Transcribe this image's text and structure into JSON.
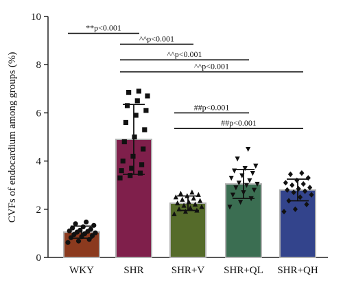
{
  "chart_data": {
    "type": "bar",
    "title": "",
    "xlabel": "",
    "ylabel": "CVFs of endocardium among groups (%)",
    "ylim": [
      0,
      10
    ],
    "yticks": [
      "0",
      "2",
      "4",
      "6",
      "8",
      "10"
    ],
    "grid": false,
    "categories": [
      "WKY",
      "SHR",
      "SHR+V",
      "SHR+QL",
      "SHR+QH"
    ],
    "values": [
      1.05,
      4.9,
      2.25,
      3.05,
      2.8
    ],
    "sd": [
      0.25,
      1.45,
      0.3,
      0.6,
      0.45
    ],
    "colors": [
      "#8b3a1e",
      "#7f1f4b",
      "#556b2a",
      "#3b6e52",
      "#33448c"
    ],
    "bar_edge_color": "#b3b3b3",
    "markers": [
      "circle",
      "square",
      "triangle-up",
      "triangle-down",
      "diamond"
    ],
    "points": [
      [
        0.62,
        0.68,
        0.75,
        0.82,
        0.86,
        0.9,
        0.95,
        0.98,
        1.02,
        1.05,
        1.08,
        1.1,
        1.13,
        1.17,
        1.22,
        1.27,
        1.33,
        1.4,
        1.47
      ],
      [
        3.3,
        3.4,
        3.5,
        3.6,
        3.7,
        3.85,
        4.0,
        4.2,
        4.5,
        4.8,
        5.0,
        5.3,
        5.6,
        5.9,
        6.1,
        6.3,
        6.5,
        6.7,
        6.85,
        6.9
      ],
      [
        1.8,
        1.9,
        1.95,
        2.0,
        2.05,
        2.1,
        2.15,
        2.2,
        2.25,
        2.3,
        2.35,
        2.4,
        2.45,
        2.5,
        2.55,
        2.6,
        2.65,
        2.7
      ],
      [
        2.1,
        2.3,
        2.45,
        2.6,
        2.7,
        2.8,
        2.9,
        3.0,
        3.05,
        3.1,
        3.2,
        3.3,
        3.4,
        3.5,
        3.6,
        3.7,
        3.8,
        4.1,
        4.5
      ],
      [
        1.9,
        2.0,
        2.2,
        2.35,
        2.5,
        2.6,
        2.7,
        2.75,
        2.8,
        2.85,
        2.9,
        3.0,
        3.05,
        3.1,
        3.2,
        3.3,
        3.45,
        3.5
      ]
    ],
    "comparisons": [
      {
        "from": 0,
        "to": 1,
        "y": 9.3,
        "label": "**p<0.001"
      },
      {
        "from": 1,
        "to": 2,
        "y": 8.85,
        "label": "^^p<0.001"
      },
      {
        "from": 1,
        "to": 3,
        "y": 8.2,
        "label": "^^p<0.001"
      },
      {
        "from": 1,
        "to": 4,
        "y": 7.7,
        "label": "^^p<0.001"
      },
      {
        "from": 2,
        "to": 3,
        "y": 6.0,
        "label": "##p<0.001"
      },
      {
        "from": 2,
        "to": 4,
        "y": 5.35,
        "label": "##p<0.001"
      }
    ]
  }
}
